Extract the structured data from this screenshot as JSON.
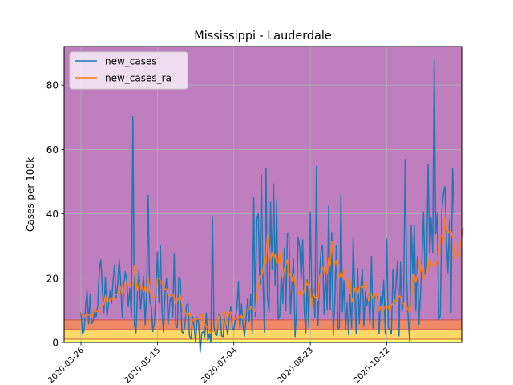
{
  "chart_data": {
    "type": "line",
    "title": "Mississippi - Lauderdale",
    "xlabel": "",
    "ylabel": "Cases per 100k",
    "x_start": "2020-03-26",
    "x_tick_labels": [
      "2020-03-26",
      "2020-05-15",
      "2020-07-04",
      "2020-08-23",
      "2020-10-12"
    ],
    "xlim": [
      "2020-03-15",
      "2020-11-30"
    ],
    "ylim": [
      0,
      92
    ],
    "y_ticks": [
      0,
      20,
      40,
      60,
      80
    ],
    "grid": true,
    "legend_position": "top-left",
    "risk_bands": [
      {
        "from": 0,
        "to": 1,
        "color": "#ffff66"
      },
      {
        "from": 1,
        "to": 4,
        "color": "#ffd966"
      },
      {
        "from": 4,
        "to": 7,
        "color": "#ee8866"
      },
      {
        "from": 7,
        "to": 92,
        "color": "#bf7fbf"
      }
    ],
    "series": [
      {
        "name": "new_cases",
        "color": "#1f77b4",
        "values": [
          9.5,
          2.6,
          3.5,
          11.0,
          16.2,
          5.8,
          14.9,
          5.8,
          6.7,
          9.6,
          8.0,
          11.7,
          22.4,
          25.7,
          16.7,
          9.3,
          20.3,
          8.1,
          11.6,
          16.0,
          12.1,
          19.3,
          24.1,
          13.8,
          17.6,
          25.7,
          19.1,
          7.8,
          17.2,
          22.0,
          19.1,
          11.1,
          16.8,
          7.9,
          70.1,
          5.4,
          3.0,
          15.9,
          22.2,
          10.5,
          16.0,
          20.5,
          5.6,
          16.1,
          45.8,
          12.6,
          11.5,
          3.4,
          6.0,
          14.7,
          28.2,
          12.3,
          30.3,
          10.2,
          3.2,
          15.6,
          20.1,
          5.6,
          12.0,
          14.7,
          8.0,
          27.5,
          5.3,
          4.6,
          20.3,
          19.5,
          3.3,
          2.9,
          5.3,
          11.5,
          12.1,
          2.0,
          1.0,
          8.0,
          5.0,
          0.0,
          7.8,
          6.1,
          -3.0,
          3.0,
          3.4,
          1.8,
          9.2,
          0.5,
          2.8,
          0.0,
          39.1,
          5.0,
          2.4,
          2.2,
          8.3,
          9.0,
          2.0,
          1.8,
          8.8,
          5.2,
          2.3,
          8.2,
          11.0,
          4.5,
          3.8,
          7.7,
          10.8,
          19.0,
          4.0,
          12.0,
          5.2,
          2.0,
          7.3,
          13.7,
          6.4,
          15.0,
          2.7,
          45.0,
          8.1,
          38.4,
          40.0,
          18.2,
          52.1,
          20.5,
          3.2,
          54.2,
          14.1,
          9.4,
          43.6,
          22.6,
          49.3,
          17.6,
          44.3,
          7.2,
          8.2,
          21.4,
          12.1,
          29.3,
          9.8,
          33.9,
          33.8,
          8.8,
          18.4,
          26.1,
          1.8,
          9.7,
          32.8,
          29.9,
          19.6,
          31.9,
          9.9,
          3.0,
          19.5,
          4.6,
          40.5,
          13.0,
          16.5,
          7.9,
          54.7,
          5.3,
          20.7,
          28.5,
          30.3,
          8.7,
          21.9,
          10.0,
          42.4,
          10.1,
          34.2,
          2.2,
          12.7,
          30.1,
          4.2,
          4.6,
          45.9,
          9.6,
          19.2,
          3.9,
          12.3,
          2.4,
          15.0,
          4.5,
          32.4,
          17.1,
          2.7,
          23.0,
          5.8,
          17.3,
          22.7,
          5.0,
          15.9,
          11.6,
          15.1,
          5.7,
          26.8,
          4.5,
          14.2,
          13.8,
          14.2,
          2.8,
          14.3,
          11.4,
          19.4,
          2.6,
          32.1,
          4.6,
          3.8,
          2.6,
          22.8,
          12.3,
          18.1,
          25.4,
          2.0,
          24.9,
          9.6,
          13.3,
          56.9,
          19.4,
          7.5,
          0.0,
          36.5,
          21.6,
          36.5,
          9.8,
          26.7,
          5.6,
          14.7,
          26.0,
          40.5,
          21.1,
          24.1,
          55.4,
          28.1,
          38.6,
          28.0,
          87.7,
          33.7,
          40.4,
          7.1,
          8.4,
          41.1,
          46.2,
          48.5,
          32.6,
          21.8,
          38.1,
          9.4,
          54.2,
          40.5
        ]
      },
      {
        "name": "new_cases_ra",
        "color": "#ff7f0e",
        "values": [
          9.5,
          8.6,
          7.8,
          8.5,
          8.6,
          8.6,
          8.3,
          7.9,
          9.6,
          10.5,
          9.8,
          9.4,
          10.3,
          11.3,
          11.8,
          11.8,
          14.6,
          12.6,
          12.6,
          13.5,
          13.9,
          13.1,
          14.1,
          15.1,
          14.9,
          16.6,
          17.2,
          15.0,
          15.9,
          18.9,
          18.9,
          18.2,
          18.2,
          17.6,
          17.6,
          24.0,
          19.2,
          16.1,
          17.9,
          18.3,
          17.2,
          15.6,
          17.4,
          15.8,
          20.2,
          16.1,
          14.6,
          14.0,
          13.9,
          16.7,
          19.9,
          20.1,
          19.2,
          18.6,
          17.1,
          16.4,
          16.7,
          14.8,
          14.6,
          14.3,
          15.0,
          14.1,
          11.9,
          13.0,
          13.8,
          14.7,
          12.0,
          10.7,
          9.8,
          8.3,
          8.5,
          9.4,
          7.7,
          6.7,
          7.5,
          7.7,
          7.2,
          7.6,
          8.1,
          9.1,
          6.4,
          5.9,
          4.8,
          4.8,
          3.6,
          3.1,
          3.5,
          3.4,
          3.2,
          4.4,
          8.1,
          8.5,
          9.0,
          9.1,
          9.4,
          5.6,
          7.2,
          9.3,
          9.5,
          8.0,
          7.3,
          7.3,
          7.3,
          8.0,
          7.6,
          8.5,
          7.4,
          8.6,
          10.1,
          10.1,
          10.1,
          11.2,
          10.4,
          10.4,
          9.7,
          14.3,
          17.2,
          20.7,
          20.3,
          22.5,
          26.2,
          24.5,
          33.3,
          29.5,
          25.3,
          28.0,
          26.0,
          27.3,
          24.6,
          24.8,
          28.3,
          21.2,
          20.1,
          23.0,
          24.1,
          25.8,
          20.6,
          21.6,
          19.2,
          21.3,
          18.2,
          17.8,
          15.2,
          16.1,
          14.3,
          15.2,
          16.1,
          19.6,
          17.7,
          18.6,
          16.4,
          11.4,
          15.8,
          13.8,
          14.2,
          13.1,
          20.6,
          21.6,
          23.4,
          21.7,
          23.9,
          21.5,
          26.3,
          23.8,
          31.5,
          26.0,
          24.4,
          25.5,
          21.4,
          20.2,
          21.7,
          20.4,
          22.5,
          20.8,
          18.6,
          17.1,
          20.0,
          12.4,
          13.9,
          16.7,
          17.0,
          14.9,
          17.2,
          17.4,
          16.9,
          17.9,
          17.4,
          18.4,
          12.9,
          15.3,
          14.8,
          13.5,
          15.2,
          15.3,
          11.2,
          9.8,
          11.2,
          9.4,
          10.3,
          11.3,
          10.9,
          11.3,
          9.3,
          11.8,
          12.0,
          13.2,
          12.5,
          13.7,
          14.5,
          14.3,
          12.0,
          12.1,
          11.0,
          11.1,
          10.2,
          9.0,
          11.4,
          19.6,
          21.2,
          18.8,
          21.0,
          25.5,
          22.0,
          24.2,
          19.7,
          20.5,
          22.0,
          22.8,
          26.5,
          24.2,
          23.6,
          24.5,
          23.9,
          25.7,
          28.1,
          33.1,
          33.3,
          30.4,
          39.1,
          35.3,
          34.7,
          34.2,
          34.5,
          32.8,
          31.6,
          26.0,
          26.5,
          27.1,
          29.7,
          33.0,
          35.7
        ]
      }
    ]
  }
}
